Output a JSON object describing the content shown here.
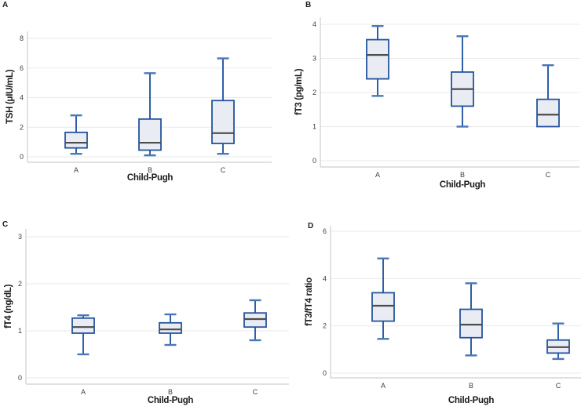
{
  "figure_title": "",
  "style": {
    "box_fill": "#eaecf4",
    "box_border": "#24549c",
    "whisker": "#2f5fa8",
    "whisker_cap": "#4a77b8",
    "median": "#4c4c4c",
    "gridline": "#e9e9e9",
    "axis_line": "#cfcfcf",
    "tick_text": "#404040",
    "title_text": "#1a1a1a"
  },
  "chart_data": [
    {
      "type": "box",
      "panel_label": "A",
      "ylabel": "TSH (μIU/mL)",
      "xlabel": "Child-Pugh",
      "categories": [
        "A",
        "B",
        "C"
      ],
      "ylim": [
        0,
        8.4
      ],
      "yticks": [
        0,
        2,
        4,
        6,
        8
      ],
      "grid": true,
      "legend": "none",
      "boxes": [
        {
          "category": "A",
          "min": 0.2,
          "q1": 0.6,
          "median": 0.95,
          "q3": 1.65,
          "max": 2.8
        },
        {
          "category": "B",
          "min": 0.1,
          "q1": 0.45,
          "median": 0.95,
          "q3": 2.55,
          "max": 5.65
        },
        {
          "category": "C",
          "min": 0.2,
          "q1": 0.9,
          "median": 1.6,
          "q3": 3.8,
          "max": 6.65
        }
      ]
    },
    {
      "type": "box",
      "panel_label": "B",
      "ylabel": "fT3 (pg/mL)",
      "xlabel": "Child-Pugh",
      "categories": [
        "A",
        "B",
        "C"
      ],
      "ylim": [
        0,
        4.2
      ],
      "yticks": [
        0,
        1,
        2,
        3,
        4
      ],
      "grid": true,
      "legend": "none",
      "boxes": [
        {
          "category": "A",
          "min": 1.9,
          "q1": 2.4,
          "median": 3.1,
          "q3": 3.55,
          "max": 3.95
        },
        {
          "category": "B",
          "min": 1.0,
          "q1": 1.6,
          "median": 2.1,
          "q3": 2.6,
          "max": 3.65
        },
        {
          "category": "C",
          "min": 1.0,
          "q1": 1.0,
          "median": 1.35,
          "q3": 1.8,
          "max": 2.8
        }
      ]
    },
    {
      "type": "box",
      "panel_label": "C",
      "ylabel": "fT4 (ng/dL)",
      "xlabel": "Child-Pugh",
      "categories": [
        "A",
        "B",
        "C"
      ],
      "ylim": [
        0,
        3.2
      ],
      "yticks": [
        0,
        1,
        2,
        3
      ],
      "grid": true,
      "legend": "none",
      "boxes": [
        {
          "category": "A",
          "min": 0.5,
          "q1": 0.95,
          "median": 1.08,
          "q3": 1.27,
          "max": 1.33
        },
        {
          "category": "B",
          "min": 0.7,
          "q1": 0.95,
          "median": 1.03,
          "q3": 1.17,
          "max": 1.35
        },
        {
          "category": "C",
          "min": 0.8,
          "q1": 1.08,
          "median": 1.25,
          "q3": 1.38,
          "max": 1.65
        }
      ]
    },
    {
      "type": "box",
      "panel_label": "D",
      "ylabel": "fT3/fT4 ratio",
      "xlabel": "Child-Pugh",
      "categories": [
        "A",
        "B",
        "C"
      ],
      "ylim": [
        0,
        6.4
      ],
      "yticks": [
        0,
        2,
        4,
        6
      ],
      "grid": true,
      "legend": "none",
      "boxes": [
        {
          "category": "A",
          "min": 1.45,
          "q1": 2.2,
          "median": 2.85,
          "q3": 3.4,
          "max": 4.85
        },
        {
          "category": "B",
          "min": 0.75,
          "q1": 1.5,
          "median": 2.05,
          "q3": 2.7,
          "max": 3.8
        },
        {
          "category": "C",
          "min": 0.6,
          "q1": 0.85,
          "median": 1.1,
          "q3": 1.4,
          "max": 2.1
        }
      ]
    }
  ]
}
